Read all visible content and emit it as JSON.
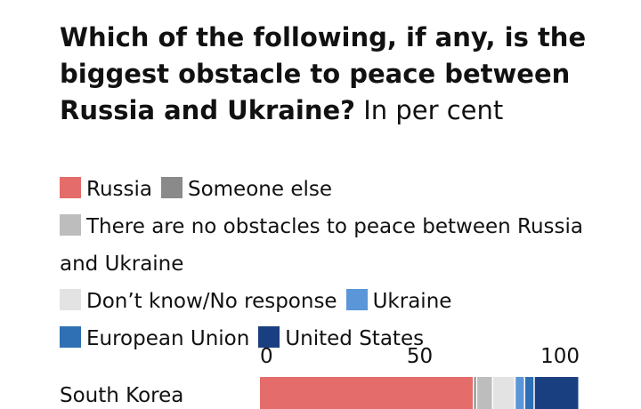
{
  "title": "Which of the following, if any, is the biggest obstacle to peace between Russia and Ukraine?",
  "subtitle": "In per cent",
  "chart_data": {
    "type": "bar",
    "orientation": "horizontal",
    "stacked": true,
    "title": "Which of the following, if any, is the biggest obstacle to peace between Russia and Ukraine?",
    "subtitle": "In per cent",
    "categories": [
      "South Korea"
    ],
    "xlim": [
      0,
      100
    ],
    "xticks": [
      "0",
      "50",
      "100"
    ],
    "legend_position": "top",
    "grid": false,
    "series": [
      {
        "name": "Russia",
        "color": "#e46c6a",
        "values": [
          67
        ]
      },
      {
        "name": "Someone else",
        "color": "#8a8a8a",
        "values": [
          1
        ]
      },
      {
        "name": "There are no obstacles to peace between Russia and Ukraine",
        "color": "#bdbdbd",
        "values": [
          5
        ]
      },
      {
        "name": "Don’t know/No response",
        "color": "#e3e3e3",
        "values": [
          7
        ]
      },
      {
        "name": "Ukraine",
        "color": "#5b96d8",
        "values": [
          3
        ]
      },
      {
        "name": "European Union",
        "color": "#2f6fb3",
        "values": [
          3
        ]
      },
      {
        "name": "United States",
        "color": "#1a3f80",
        "values": [
          14
        ]
      }
    ]
  }
}
